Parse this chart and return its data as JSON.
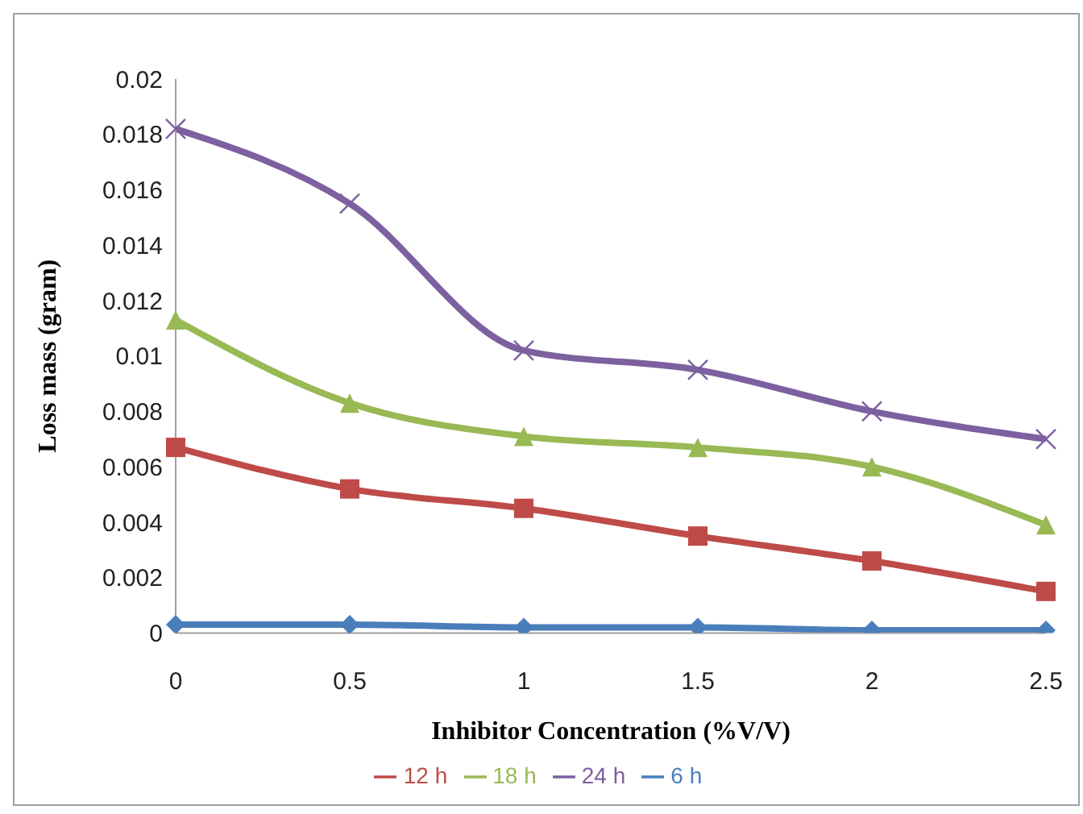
{
  "chart_data": {
    "type": "line",
    "xlabel": "Inhibitor Concentration (%V/V)",
    "ylabel": "Loss mass (gram)",
    "categories": [
      "0",
      "0.5",
      "1",
      "1.5",
      "2",
      "2.5"
    ],
    "series": [
      {
        "name": "6 h",
        "color": "#4a7ebb",
        "marker": "diamond",
        "values": [
          0.0003,
          0.0003,
          0.0002,
          0.0002,
          0.0001,
          0.0001
        ]
      },
      {
        "name": "12 h",
        "color": "#be4b48",
        "marker": "square",
        "values": [
          0.0067,
          0.0052,
          0.0045,
          0.0035,
          0.0026,
          0.0015
        ]
      },
      {
        "name": "18 h",
        "color": "#98b954",
        "marker": "triangle",
        "values": [
          0.0113,
          0.0083,
          0.0071,
          0.0067,
          0.006,
          0.0039
        ]
      },
      {
        "name": "24 h",
        "color": "#7d60a0",
        "marker": "cross",
        "values": [
          0.0182,
          0.0155,
          0.0102,
          0.0095,
          0.008,
          0.007
        ]
      }
    ],
    "ylim": [
      0,
      0.02
    ],
    "yticks": [
      0,
      0.002,
      0.004,
      0.006,
      0.008,
      0.01,
      0.012,
      0.014,
      0.016,
      0.018,
      0.02
    ],
    "grid": false,
    "legend": "bottom"
  }
}
